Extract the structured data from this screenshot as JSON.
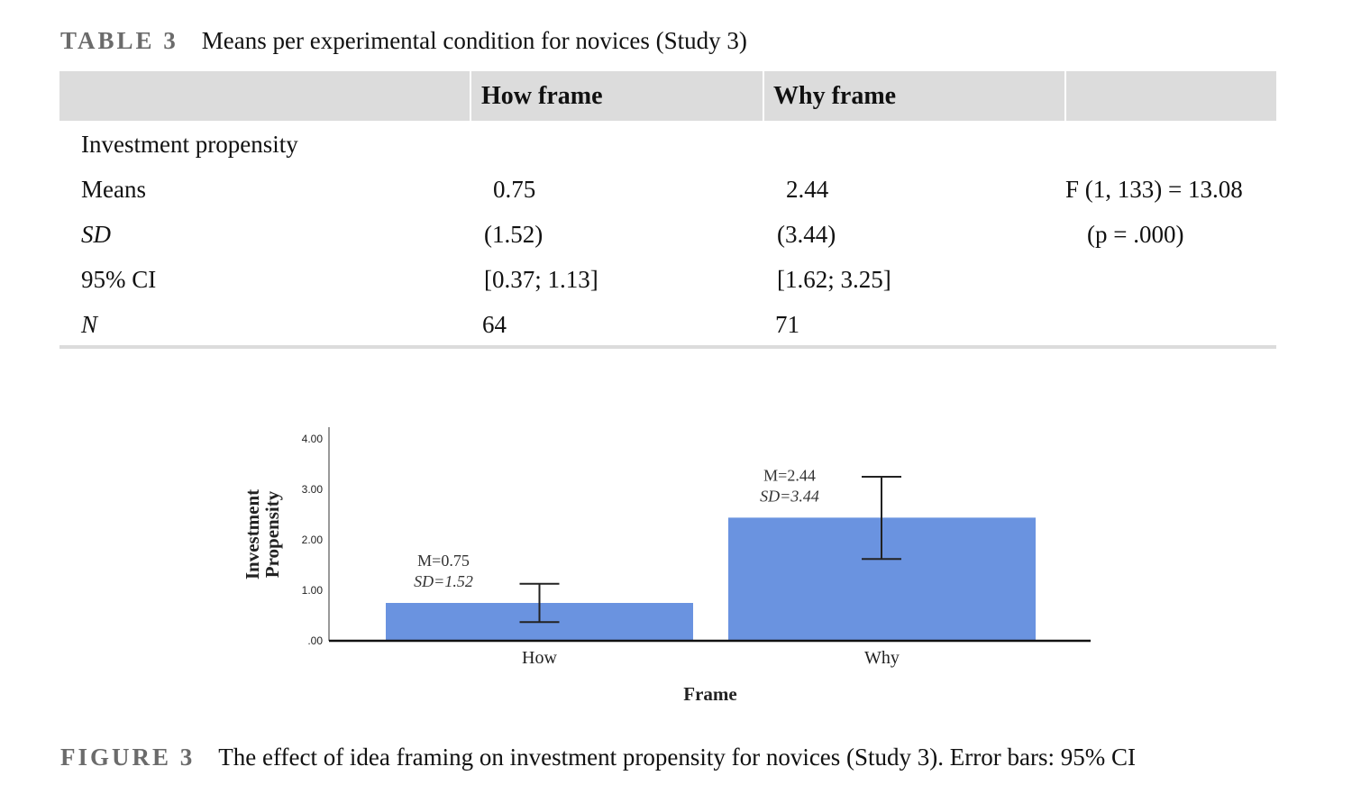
{
  "table": {
    "label": "TABLE 3",
    "caption": "Means per experimental condition for novices (Study 3)",
    "headers": [
      "How frame",
      "Why frame"
    ],
    "section": "Investment propensity",
    "rows": [
      {
        "label": "Means",
        "how": "0.75",
        "why": "2.44",
        "stat": "F (1, 133) = 13.08"
      },
      {
        "label": "SD",
        "how": "(1.52)",
        "why": "(3.44)",
        "stat": "(p = .000)"
      },
      {
        "label": "95% CI",
        "how": "[0.37; 1.13]",
        "why": "[1.62; 3.25]",
        "stat": ""
      },
      {
        "label": "N",
        "how": "64",
        "why": "71",
        "stat": ""
      }
    ]
  },
  "chart_data": {
    "type": "bar",
    "categories": [
      "How",
      "Why"
    ],
    "values": [
      0.75,
      2.44
    ],
    "ci": [
      [
        0.37,
        1.13
      ],
      [
        1.62,
        3.25
      ]
    ],
    "annotations": [
      {
        "m": "M=0.75",
        "sd": "SD=1.52"
      },
      {
        "m": "M=2.44",
        "sd": "SD=3.44"
      }
    ],
    "ylabel_line1": "Investment",
    "ylabel_line2": "Propensity",
    "xlabel": "Frame",
    "yticks": [
      ".00",
      "1.00",
      "2.00",
      "3.00",
      "4.00"
    ],
    "ylim": [
      0,
      4
    ],
    "bar_color": "#6a93e0"
  },
  "figure": {
    "label": "FIGURE 3",
    "caption": "The effect of idea framing on investment propensity for novices (Study 3). Error bars: 95% CI"
  }
}
